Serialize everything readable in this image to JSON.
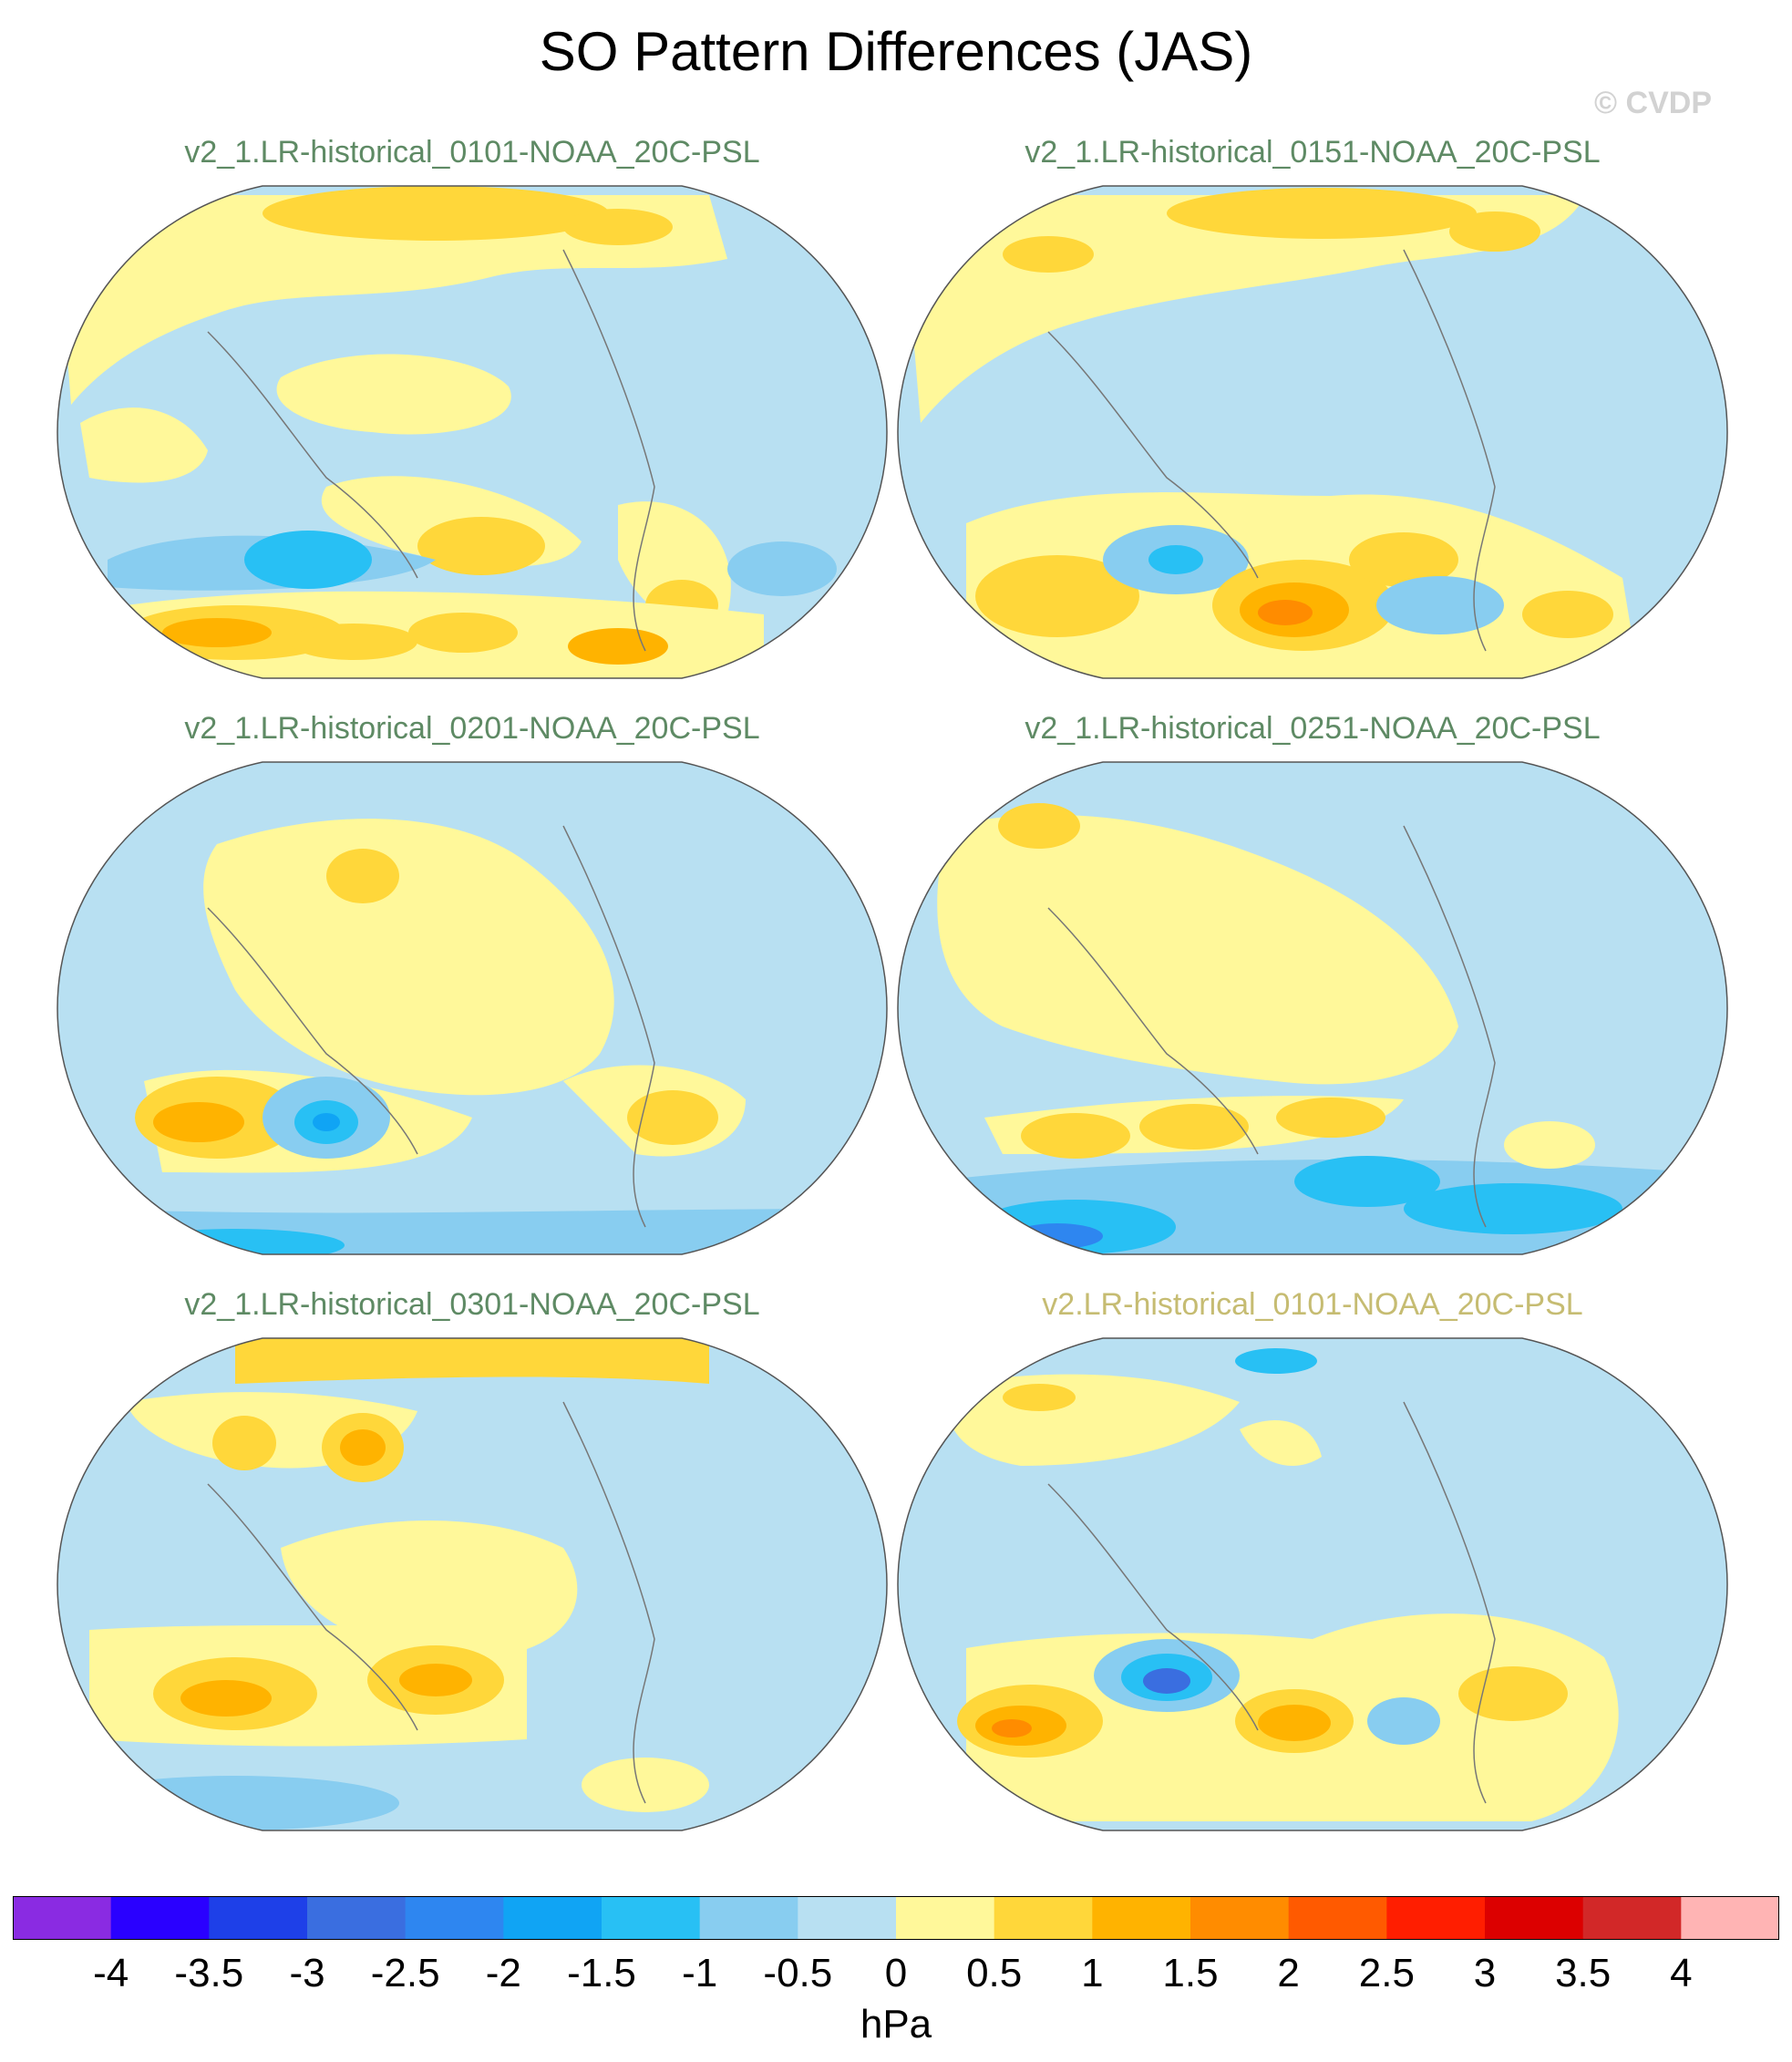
{
  "title": "SO Pattern Differences (JAS)",
  "copyright": "© CVDP",
  "units": "hPa",
  "colors": {
    "ocean_neutral": "#b8e0f2",
    "panel_title_a": "#5e8a64",
    "panel_title_b": "#c6bc72",
    "coastline": "#777777"
  },
  "colorbar": {
    "ticks": [
      "-4",
      "-3.5",
      "-3",
      "-2.5",
      "-2",
      "-1.5",
      "-1",
      "-0.5",
      "0",
      "0.5",
      "1",
      "1.5",
      "2",
      "2.5",
      "3",
      "3.5",
      "4"
    ],
    "colors": [
      "#8a2be2",
      "#2a00ff",
      "#1e40e8",
      "#3a6ee0",
      "#2e86f0",
      "#10a4f4",
      "#28c0f4",
      "#88cdf0",
      "#b8e0f2",
      "#fff89a",
      "#ffd73a",
      "#ffb300",
      "#ff8c00",
      "#ff5a00",
      "#ff1e00",
      "#dc0000",
      "#d22828",
      "#ffb4b4"
    ]
  },
  "panels": [
    {
      "title": "v2_1.LR-historical_0101-NOAA_20C-PSL",
      "color": "#5e8a64"
    },
    {
      "title": "v2_1.LR-historical_0151-NOAA_20C-PSL",
      "color": "#5e8a64"
    },
    {
      "title": "v2_1.LR-historical_0201-NOAA_20C-PSL",
      "color": "#5e8a64"
    },
    {
      "title": "v2_1.LR-historical_0251-NOAA_20C-PSL",
      "color": "#5e8a64"
    },
    {
      "title": "v2_1.LR-historical_0301-NOAA_20C-PSL",
      "color": "#5e8a64"
    },
    {
      "title": "v2.LR-historical_0101-NOAA_20C-PSL",
      "color": "#c6bc72"
    }
  ]
}
